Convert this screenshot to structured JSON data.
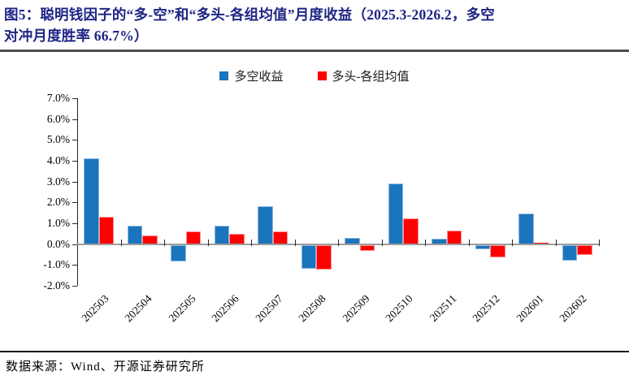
{
  "figure": {
    "title_lines": [
      "图5：聪明钱因子的“多-空”和“多头-各组均值”月度收益（2025.3-2026.2，多空",
      "对冲月度胜率 66.7%）"
    ],
    "title_full": "图5：聪明钱因子的“多-空”和“多头-各组均值”月度收益（2025.3-2026.2，多空对冲月度胜率 66.7%）",
    "source": "数据来源：Wind、开源证券研究所"
  },
  "legend": {
    "items": [
      {
        "label": "多空收益",
        "color": "#1b75bc"
      },
      {
        "label": "多头-各组均值",
        "color": "#fe0000"
      }
    ]
  },
  "colors": {
    "title": "#1f2585",
    "series_blue": "#1b75bc",
    "series_blue_border": "#8db8e2",
    "series_red": "#fe0000",
    "series_red_border": "#ff8f8f",
    "zero_line": "#9e9e9e",
    "axis": "#262626"
  },
  "chart_data": {
    "type": "bar",
    "title": "聪明钱因子的“多-空”和“多头-各组均值”月度收益",
    "categories": [
      "202503",
      "202504",
      "202505",
      "202506",
      "202507",
      "202508",
      "202509",
      "202510",
      "202511",
      "202512",
      "202601",
      "202602"
    ],
    "series": [
      {
        "name": "多空收益",
        "color": "#1b75bc",
        "border": "#8db8e2",
        "values": [
          4.1,
          0.9,
          -0.8,
          0.9,
          1.8,
          -1.15,
          0.3,
          2.9,
          0.25,
          -0.2,
          1.45,
          -0.75
        ]
      },
      {
        "name": "多头-各组均值",
        "color": "#fe0000",
        "border": "#ff8f8f",
        "values": [
          1.3,
          0.4,
          0.6,
          0.5,
          0.6,
          -1.2,
          -0.3,
          1.25,
          0.65,
          -0.6,
          0.05,
          -0.5
        ]
      }
    ],
    "xlabel": "",
    "ylabel": "",
    "ylim": [
      -2.0,
      7.0
    ],
    "ytick_step": 1.0,
    "ytick_labels": [
      "7.0%",
      "6.0%",
      "5.0%",
      "4.0%",
      "3.0%",
      "2.0%",
      "1.0%",
      "0.0%",
      "-1.0%",
      "-2.0%"
    ],
    "grid": false,
    "legend_position": "top-center"
  }
}
